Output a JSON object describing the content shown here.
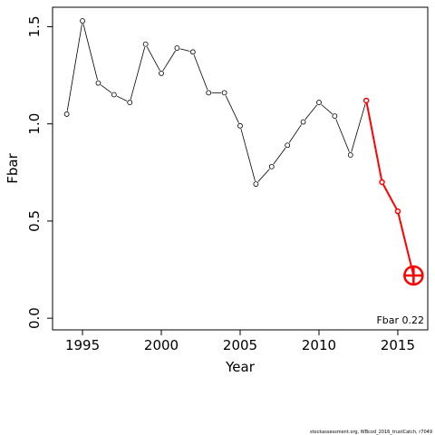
{
  "chart_data": {
    "type": "line",
    "xlabel": "Year",
    "ylabel": "Fbar",
    "xlim": [
      1993.1,
      2016.9
    ],
    "ylim": [
      -0.06,
      1.6
    ],
    "x_ticks": [
      1995,
      2000,
      2005,
      2010,
      2015
    ],
    "y_ticks": [
      0.0,
      0.5,
      1.0,
      1.5
    ],
    "x_tick_labels": [
      "1995",
      "2000",
      "2005",
      "2010",
      "2015"
    ],
    "y_tick_labels": [
      "0.0",
      "0.5",
      "1.0",
      "1.5"
    ],
    "grid": false,
    "series": [
      {
        "role": "historical",
        "color": "#000000",
        "x": [
          1994,
          1995,
          1996,
          1997,
          1998,
          1999,
          2000,
          2001,
          2002,
          2003,
          2004,
          2005,
          2006,
          2007,
          2008,
          2009,
          2010,
          2011,
          2012,
          2013,
          2014
        ],
        "y": [
          1.05,
          1.53,
          1.21,
          1.15,
          1.11,
          1.41,
          1.26,
          1.39,
          1.37,
          1.16,
          1.16,
          0.99,
          0.69,
          0.78,
          0.89,
          1.01,
          1.11,
          1.04,
          0.84,
          1.12,
          0.7
        ]
      },
      {
        "role": "forecast",
        "color": "#ff0000",
        "x": [
          2013,
          2014,
          2015,
          2016
        ],
        "y": [
          1.12,
          0.7,
          0.55,
          0.22
        ]
      }
    ],
    "highlight": {
      "x": 2016,
      "y": 0.22,
      "color": "#ff0000"
    },
    "annotation": "Fbar 0.22",
    "footer": "stockassessment.org, WBcod_2016_trustCatch, r7049"
  }
}
